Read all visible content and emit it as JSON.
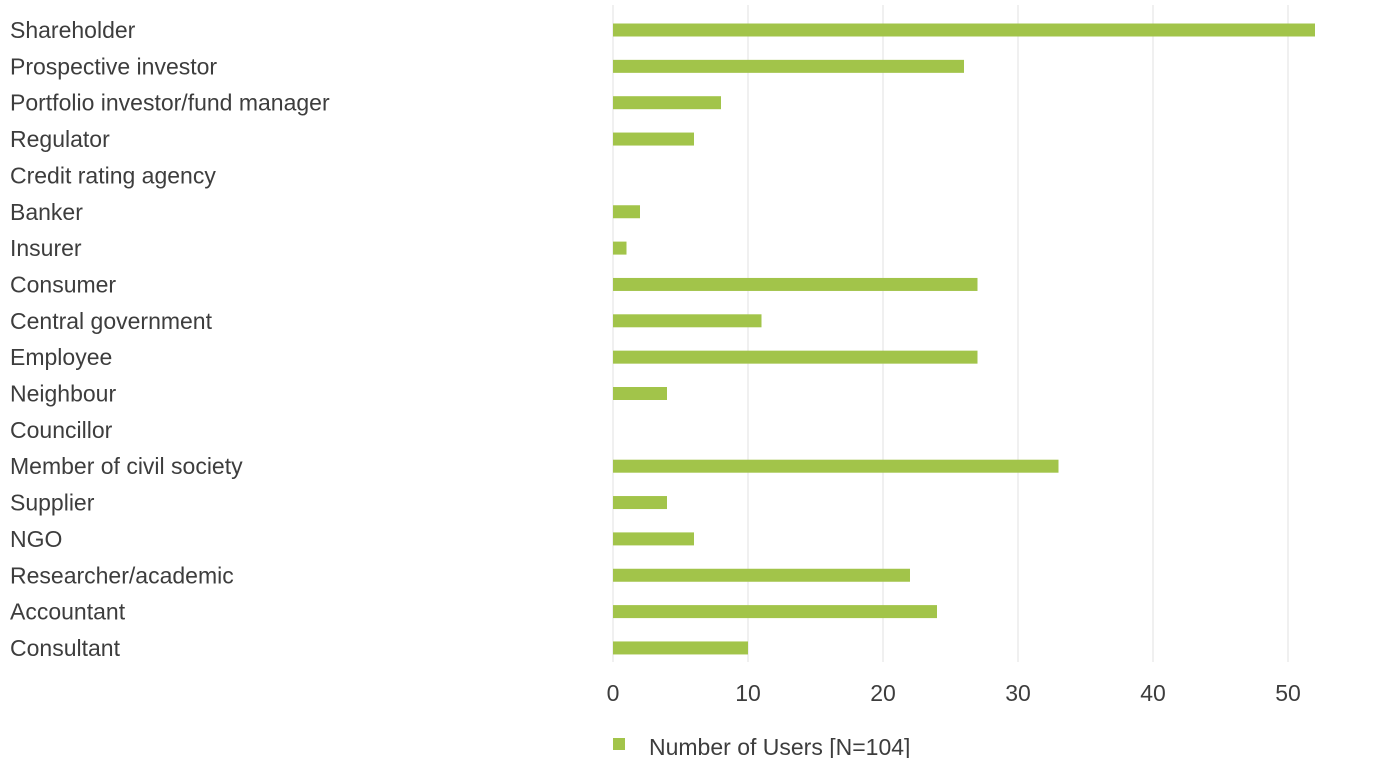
{
  "chart_data": {
    "type": "bar",
    "orientation": "horizontal",
    "categories": [
      "Shareholder",
      "Prospective investor",
      "Portfolio investor/fund manager",
      "Regulator",
      "Credit rating agency",
      "Banker",
      "Insurer",
      "Consumer",
      "Central government",
      "Employee",
      "Neighbour",
      "Councillor",
      "Member of civil society",
      "Supplier",
      "NGO",
      "Researcher/academic",
      "Accountant",
      "Consultant"
    ],
    "series": [
      {
        "name": "Number of Users [N=104]",
        "color": "#a2c44a",
        "values": [
          52,
          26,
          8,
          6,
          0,
          2,
          1,
          27,
          11,
          27,
          4,
          0,
          33,
          4,
          6,
          22,
          24,
          10
        ]
      }
    ],
    "x_ticks": [
      "0",
      "10",
      "20",
      "30",
      "40",
      "50"
    ],
    "xlim": [
      0,
      54
    ],
    "grid": "vertical",
    "legend_position": "bottom",
    "title": "",
    "xlabel": "",
    "ylabel": ""
  }
}
